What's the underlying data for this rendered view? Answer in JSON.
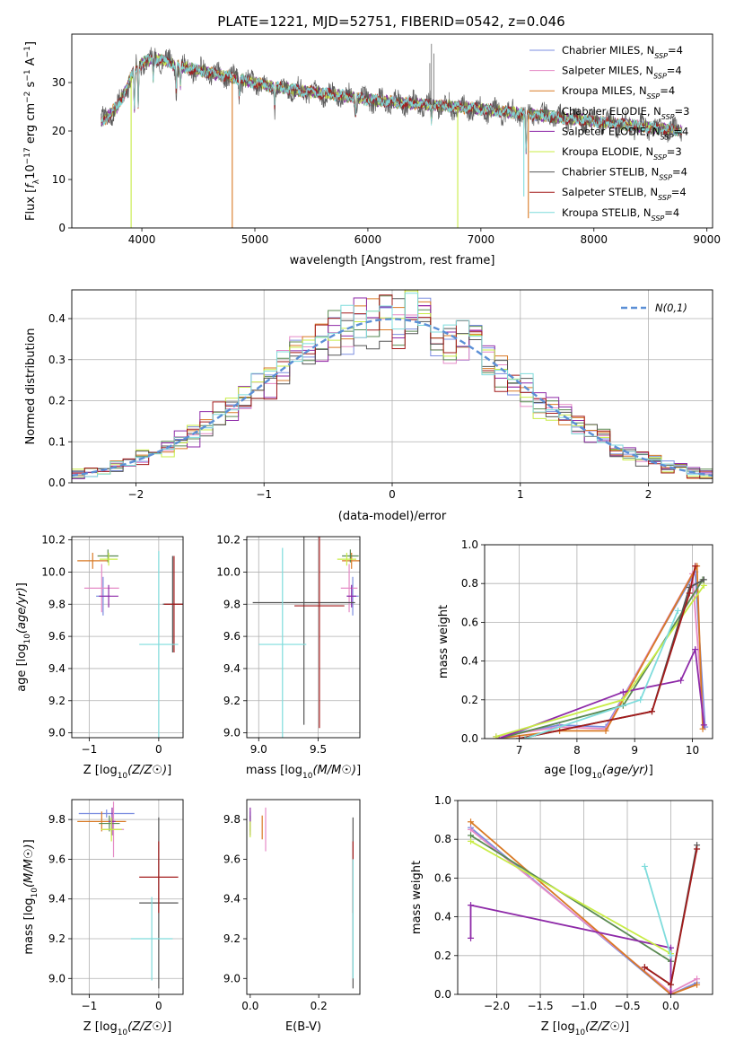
{
  "figure": {
    "title": "PLATE=1221, MJD=52751, FIBERID=0542, z=0.046"
  },
  "colors": {
    "Chabrier MILES": "#7b8de0",
    "Salpeter MILES": "#e58ac6",
    "Kroupa MILES": "#d97a25",
    "Chabrier ELODIE": "#5a8a52",
    "Salpeter ELODIE": "#8e2aa8",
    "Kroupa ELODIE": "#c8ec46",
    "Chabrier STELIB": "#555555",
    "Salpeter STELIB": "#a31b1b",
    "Kroupa STELIB": "#7fdcdc",
    "gaussian": "#5b8fd6"
  },
  "chart_data": [
    {
      "id": "spectrum",
      "type": "line",
      "title": "PLATE=1221, MJD=52751, FIBERID=0542, z=0.046",
      "xlabel": "wavelength [Angstrom, rest frame]",
      "ylabel": "Flux [f_λ 10^-17 erg cm^-2 s^-1 A^-1]",
      "xlim": [
        3380,
        9050
      ],
      "ylim": [
        0,
        40
      ],
      "xticks": [
        4000,
        5000,
        6000,
        7000,
        8000,
        9000
      ],
      "yticks": [
        0,
        10,
        20,
        30
      ],
      "grid": false,
      "legend_position": "top-right",
      "continuum": {
        "x": [
          3640,
          3700,
          3780,
          3850,
          3900,
          3950,
          4000,
          4050,
          4100,
          4200,
          4300,
          4400,
          4500,
          4600,
          4700,
          4800,
          4900,
          5000,
          5200,
          5400,
          5600,
          5800,
          6000,
          6200,
          6400,
          6600,
          6800,
          7000,
          7200,
          7400,
          7600,
          7800,
          8000,
          8200,
          8400,
          8600,
          8780
        ],
        "y": [
          22,
          23,
          25,
          28,
          31,
          33,
          34,
          34.5,
          35,
          34.5,
          33.5,
          33,
          32.5,
          32,
          31.5,
          31,
          30.5,
          30,
          29,
          28.3,
          27.8,
          27.2,
          26.5,
          26,
          25.6,
          25.3,
          25,
          24.5,
          24,
          23.5,
          23,
          22.5,
          22,
          21.5,
          21,
          20.5,
          20
        ]
      },
      "absorption_lines": [
        {
          "x": 3934,
          "depth": 8
        },
        {
          "x": 3968,
          "depth": 8
        },
        {
          "x": 4101,
          "depth": 4
        },
        {
          "x": 4304,
          "depth": 5
        },
        {
          "x": 4341,
          "depth": 4
        },
        {
          "x": 4861,
          "depth": 3
        },
        {
          "x": 5175,
          "depth": 4
        },
        {
          "x": 5893,
          "depth": 3
        },
        {
          "x": 6563,
          "depth": 3
        },
        {
          "x": 7400,
          "depth": 8
        }
      ],
      "artifacts": [
        {
          "series": "Kroupa ELODIE",
          "x": 3905,
          "y": 0
        },
        {
          "series": "Kroupa MILES",
          "x": 4800,
          "y": 0
        },
        {
          "series": "Kroupa ELODIE",
          "x": 6795,
          "y": 0
        },
        {
          "series": "Kroupa STELIB",
          "x": 7380,
          "y": 6.5
        },
        {
          "series": "Kroupa MILES",
          "x": 7420,
          "y": 2
        }
      ],
      "series": [
        {
          "name": "Chabrier MILES",
          "legend": "Chabrier MILES, N",
          "sub": "SSP",
          "eq": "=4"
        },
        {
          "name": "Salpeter MILES",
          "legend": "Salpeter MILES, N",
          "sub": "SSP",
          "eq": "=4"
        },
        {
          "name": "Kroupa MILES",
          "legend": "Kroupa MILES, N",
          "sub": "SSP",
          "eq": "=4"
        },
        {
          "name": "Chabrier ELODIE",
          "legend": "Chabrier ELODIE, N",
          "sub": "SSP",
          "eq": "=3"
        },
        {
          "name": "Salpeter ELODIE",
          "legend": "Salpeter ELODIE, N",
          "sub": "SSP",
          "eq": "=4"
        },
        {
          "name": "Kroupa ELODIE",
          "legend": "Kroupa ELODIE, N",
          "sub": "SSP",
          "eq": "=3"
        },
        {
          "name": "Chabrier STELIB",
          "legend": "Chabrier STELIB, N",
          "sub": "SSP",
          "eq": "=4"
        },
        {
          "name": "Salpeter STELIB",
          "legend": "Salpeter STELIB, N",
          "sub": "SSP",
          "eq": "=4"
        },
        {
          "name": "Kroupa STELIB",
          "legend": "Kroupa STELIB, N",
          "sub": "SSP",
          "eq": "=4"
        }
      ]
    },
    {
      "id": "residuals",
      "type": "line",
      "xlabel": "(data-model)/error",
      "ylabel": "Normed distribution",
      "xlim": [
        -2.5,
        2.5
      ],
      "ylim": [
        0,
        0.47
      ],
      "xticks": [
        -2,
        -1,
        0,
        1,
        2
      ],
      "yticks": [
        0.0,
        0.1,
        0.2,
        0.3,
        0.4
      ],
      "grid": true,
      "legend_position": "top-right",
      "legend": "N(0,1)",
      "bin_edges_start": -2.5,
      "bin_width": 0.1,
      "gaussian": {
        "mean": 0,
        "sigma": 1,
        "style": "dashed"
      },
      "series": [
        {
          "name": "Chabrier MILES",
          "seed": 1
        },
        {
          "name": "Salpeter MILES",
          "seed": 2
        },
        {
          "name": "Kroupa MILES",
          "seed": 3
        },
        {
          "name": "Chabrier ELODIE",
          "seed": 4
        },
        {
          "name": "Salpeter ELODIE",
          "seed": 5
        },
        {
          "name": "Kroupa ELODIE",
          "seed": 6
        },
        {
          "name": "Chabrier STELIB",
          "seed": 7
        },
        {
          "name": "Salpeter STELIB",
          "seed": 8
        },
        {
          "name": "Kroupa STELIB",
          "seed": 9
        }
      ]
    },
    {
      "id": "age-vs-Z",
      "type": "scatter",
      "xlabel": "Z [log10(Z/Z☉)]",
      "ylabel": "age [log10(age/yr)]",
      "xlim": [
        -1.25,
        0.35
      ],
      "ylim": [
        8.97,
        10.22
      ],
      "xticks": [
        -1,
        0
      ],
      "yticks": [
        9.0,
        9.2,
        9.4,
        9.6,
        9.8,
        10.0,
        10.2
      ],
      "grid": true,
      "points": [
        {
          "series": "Chabrier MILES",
          "x": -0.8,
          "y": 9.85,
          "xerr": 0.1,
          "yerr": 0.12
        },
        {
          "series": "Salpeter MILES",
          "x": -0.82,
          "y": 9.9,
          "xerr": 0.25,
          "yerr": 0.15
        },
        {
          "series": "Kroupa MILES",
          "x": -0.95,
          "y": 10.07,
          "xerr": 0.22,
          "yerr": 0.05
        },
        {
          "series": "Chabrier ELODIE",
          "x": -0.73,
          "y": 10.1,
          "xerr": 0.15,
          "yerr": 0.04
        },
        {
          "series": "Salpeter ELODIE",
          "x": -0.72,
          "y": 9.85,
          "xerr": 0.14,
          "yerr": 0.07
        },
        {
          "series": "Kroupa ELODIE",
          "x": -0.72,
          "y": 10.08,
          "xerr": 0.13,
          "yerr": 0.04
        },
        {
          "series": "Chabrier STELIB",
          "x": 0.2,
          "y": 9.8,
          "xerr": 0.14,
          "yerr": 0.3
        },
        {
          "series": "Salpeter STELIB",
          "x": 0.22,
          "y": 9.8,
          "xerr": 0.14,
          "yerr": 0.3
        },
        {
          "series": "Kroupa STELIB",
          "x": 0.0,
          "y": 9.55,
          "xerr": 0.28,
          "yerr": 0.58
        }
      ]
    },
    {
      "id": "age-vs-mass",
      "type": "scatter",
      "xlabel": "mass [log10(M/M☉)]",
      "ylabel": "",
      "xlim": [
        8.9,
        9.85
      ],
      "ylim": [
        8.97,
        10.22
      ],
      "xticks": [
        9.0,
        9.5
      ],
      "yticks": [
        9.0,
        9.2,
        9.4,
        9.6,
        9.8,
        10.0,
        10.2
      ],
      "grid": true,
      "points": [
        {
          "series": "Chabrier MILES",
          "x": 9.79,
          "y": 9.85,
          "xerr": 0.05,
          "yerr": 0.12
        },
        {
          "series": "Salpeter MILES",
          "x": 9.76,
          "y": 9.9,
          "xerr": 0.07,
          "yerr": 0.15
        },
        {
          "series": "Kroupa MILES",
          "x": 9.78,
          "y": 10.07,
          "xerr": 0.08,
          "yerr": 0.05
        },
        {
          "series": "Chabrier ELODIE",
          "x": 9.77,
          "y": 10.1,
          "xerr": 0.07,
          "yerr": 0.04
        },
        {
          "series": "Salpeter ELODIE",
          "x": 9.78,
          "y": 9.85,
          "xerr": 0.04,
          "yerr": 0.07
        },
        {
          "series": "Kroupa ELODIE",
          "x": 9.74,
          "y": 10.08,
          "xerr": 0.08,
          "yerr": 0.04
        },
        {
          "series": "Chabrier STELIB",
          "x": 9.38,
          "y": 9.81,
          "xerr": 0.43,
          "yerr": 0.76
        },
        {
          "series": "Salpeter STELIB",
          "x": 9.51,
          "y": 9.79,
          "xerr": 0.21,
          "yerr": 0.76
        },
        {
          "series": "Kroupa STELIB",
          "x": 9.2,
          "y": 9.55,
          "xerr": 0.2,
          "yerr": 0.6
        }
      ]
    },
    {
      "id": "mass-weight-vs-age",
      "type": "line",
      "xlabel": "age [log10(age/yr)]",
      "ylabel": "mass weight",
      "xlim": [
        6.4,
        10.35
      ],
      "ylim": [
        0,
        1
      ],
      "xticks": [
        7,
        8,
        9,
        10
      ],
      "yticks": [
        0.0,
        0.2,
        0.4,
        0.6,
        0.8,
        1.0
      ],
      "grid": true,
      "series": [
        {
          "name": "Chabrier MILES",
          "x": [
            6.6,
            7.7,
            8.5,
            10.05,
            10.22
          ],
          "y": [
            0.01,
            0.07,
            0.06,
            0.86,
            0.06
          ]
        },
        {
          "name": "Salpeter MILES",
          "x": [
            6.6,
            7.7,
            8.5,
            10.0,
            10.2
          ],
          "y": [
            0.01,
            0.06,
            0.05,
            0.85,
            0.07
          ]
        },
        {
          "name": "Kroupa MILES",
          "x": [
            6.6,
            7.7,
            8.5,
            10.08,
            10.18
          ],
          "y": [
            0.0,
            0.04,
            0.04,
            0.89,
            0.05
          ]
        },
        {
          "name": "Chabrier ELODIE",
          "x": [
            6.65,
            8.8,
            10.18
          ],
          "y": [
            0.0,
            0.17,
            0.82
          ]
        },
        {
          "name": "Salpeter ELODIE",
          "x": [
            6.65,
            8.8,
            9.8,
            10.05,
            10.2
          ],
          "y": [
            0.0,
            0.24,
            0.3,
            0.46,
            0.07
          ]
        },
        {
          "name": "Kroupa ELODIE",
          "x": [
            6.6,
            8.8,
            10.2
          ],
          "y": [
            0.01,
            0.2,
            0.79
          ]
        },
        {
          "name": "Chabrier STELIB",
          "x": [
            7.0,
            9.3,
            9.95,
            10.2
          ],
          "y": [
            0.0,
            0.14,
            0.78,
            0.82
          ]
        },
        {
          "name": "Salpeter STELIB",
          "x": [
            7.0,
            9.3,
            9.95,
            10.05
          ],
          "y": [
            0.0,
            0.14,
            0.75,
            0.89
          ]
        },
        {
          "name": "Kroupa STELIB",
          "x": [
            7.1,
            9.1,
            9.75
          ],
          "y": [
            0.0,
            0.2,
            0.66
          ]
        }
      ]
    },
    {
      "id": "mass-vs-Z",
      "type": "scatter",
      "xlabel": "Z [log10(Z/Z☉)]",
      "ylabel": "mass [log10(M/M☉)]",
      "xlim": [
        -1.25,
        0.35
      ],
      "ylim": [
        8.92,
        9.9
      ],
      "xticks": [
        -1,
        0
      ],
      "yticks": [
        9.0,
        9.2,
        9.4,
        9.6,
        9.8
      ],
      "grid": true,
      "points": [
        {
          "series": "Chabrier MILES",
          "x": -0.75,
          "y": 9.83,
          "xerr": 0.4,
          "yerr": 0.02
        },
        {
          "series": "Salpeter MILES",
          "x": -0.65,
          "y": 9.75,
          "xerr": 0.15,
          "yerr": 0.14
        },
        {
          "series": "Kroupa MILES",
          "x": -0.82,
          "y": 9.79,
          "xerr": 0.35,
          "yerr": 0.05
        },
        {
          "series": "Chabrier ELODIE",
          "x": -0.71,
          "y": 9.78,
          "xerr": 0.15,
          "yerr": 0.04
        },
        {
          "series": "Salpeter ELODIE",
          "x": -0.67,
          "y": 9.79,
          "xerr": 0.05,
          "yerr": 0.07
        },
        {
          "series": "Kroupa ELODIE",
          "x": -0.68,
          "y": 9.75,
          "xerr": 0.15,
          "yerr": 0.06
        },
        {
          "series": "Chabrier STELIB",
          "x": 0.0,
          "y": 9.38,
          "xerr": 0.28,
          "yerr": 0.43
        },
        {
          "series": "Salpeter STELIB",
          "x": 0.0,
          "y": 9.51,
          "xerr": 0.28,
          "yerr": 0.18
        },
        {
          "series": "Kroupa STELIB",
          "x": -0.1,
          "y": 9.2,
          "xerr": 0.3,
          "yerr": 0.21
        }
      ]
    },
    {
      "id": "mass-vs-EBV",
      "type": "scatter",
      "xlabel": "E(B-V)",
      "ylabel": "",
      "xlim": [
        -0.01,
        0.32
      ],
      "ylim": [
        8.92,
        9.9
      ],
      "xticks": [
        0.0,
        0.2
      ],
      "yticks": [
        9.0,
        9.2,
        9.4,
        9.6,
        9.8
      ],
      "grid": false,
      "points": [
        {
          "series": "Chabrier MILES",
          "x": 0.0,
          "y": 9.82,
          "xerr": 0,
          "yerr": 0.02
        },
        {
          "series": "Salpeter MILES",
          "x": 0.045,
          "y": 9.75,
          "xerr": 0,
          "yerr": 0.11
        },
        {
          "series": "Kroupa MILES",
          "x": 0.035,
          "y": 9.76,
          "xerr": 0,
          "yerr": 0.06
        },
        {
          "series": "Chabrier ELODIE",
          "x": 0.0,
          "y": 9.78,
          "xerr": 0,
          "yerr": 0.04
        },
        {
          "series": "Salpeter ELODIE",
          "x": 0.0,
          "y": 9.79,
          "xerr": 0,
          "yerr": 0.07
        },
        {
          "series": "Kroupa ELODIE",
          "x": 0.0,
          "y": 9.75,
          "xerr": 0,
          "yerr": 0.04
        },
        {
          "series": "Chabrier STELIB",
          "x": 0.3,
          "y": 9.38,
          "xerr": 0,
          "yerr": 0.43
        },
        {
          "series": "Salpeter STELIB",
          "x": 0.3,
          "y": 9.51,
          "xerr": 0,
          "yerr": 0.18
        },
        {
          "series": "Kroupa STELIB",
          "x": 0.3,
          "y": 9.3,
          "xerr": 0,
          "yerr": 0.3
        }
      ]
    },
    {
      "id": "mass-weight-vs-Z",
      "type": "line",
      "xlabel": "Z [log10(Z/Z☉)]",
      "ylabel": "mass weight",
      "xlim": [
        -2.45,
        0.48
      ],
      "ylim": [
        0,
        1
      ],
      "xticks": [
        -2.0,
        -1.5,
        -1.0,
        -0.5,
        0.0
      ],
      "yticks": [
        0.0,
        0.2,
        0.4,
        0.6,
        0.8,
        1.0
      ],
      "grid": true,
      "series": [
        {
          "name": "Chabrier MILES",
          "x": [
            -2.3,
            0.0,
            0.3
          ],
          "y": [
            0.86,
            0.0,
            0.06
          ]
        },
        {
          "name": "Salpeter MILES",
          "x": [
            -2.3,
            0.0,
            0.3
          ],
          "y": [
            0.85,
            0.01,
            0.08
          ]
        },
        {
          "name": "Kroupa MILES",
          "x": [
            -2.3,
            0.0,
            0.3
          ],
          "y": [
            0.89,
            0.0,
            0.05
          ]
        },
        {
          "name": "Chabrier ELODIE",
          "x": [
            -2.3,
            0.0
          ],
          "y": [
            0.82,
            0.17
          ]
        },
        {
          "name": "Salpeter ELODIE",
          "x": [
            -2.3,
            -2.3,
            0.0,
            0.0
          ],
          "y": [
            0.29,
            0.46,
            0.24,
            0.0
          ]
        },
        {
          "name": "Kroupa ELODIE",
          "x": [
            -2.3,
            0.0
          ],
          "y": [
            0.79,
            0.21
          ]
        },
        {
          "name": "Chabrier STELIB",
          "x": [
            -0.3,
            0.0,
            0.3
          ],
          "y": [
            0.14,
            0.05,
            0.77
          ]
        },
        {
          "name": "Salpeter STELIB",
          "x": [
            -0.3,
            0.0,
            0.3
          ],
          "y": [
            0.14,
            0.05,
            0.75
          ]
        },
        {
          "name": "Kroupa STELIB",
          "x": [
            -0.3,
            0.0
          ],
          "y": [
            0.66,
            0.2
          ]
        }
      ]
    }
  ]
}
